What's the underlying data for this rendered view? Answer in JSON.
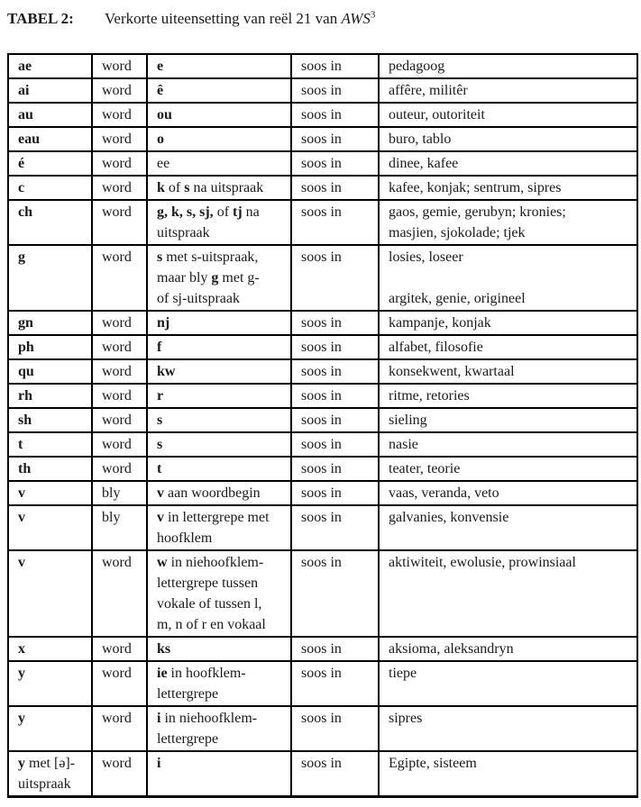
{
  "title": {
    "label": "TABEL 2:",
    "text": "Verkorte uiteensetting van reël 21 van ",
    "work": "AWS",
    "superscript": "3"
  },
  "colors": {
    "text": "#1a1a1a",
    "border": "#000000",
    "background": "#ffffff"
  },
  "table": {
    "rows": [
      {
        "grapheme": [
          {
            "b": "ae"
          }
        ],
        "status": "word",
        "replacement": [
          {
            "b": "e"
          }
        ],
        "soos_in": "soos in",
        "examples": [
          {
            "t": "pedagoog"
          }
        ]
      },
      {
        "grapheme": [
          {
            "b": "ai"
          }
        ],
        "status": "word",
        "replacement": [
          {
            "b": "ê"
          }
        ],
        "soos_in": "soos in",
        "examples": [
          {
            "t": "affêre, militêr"
          }
        ]
      },
      {
        "grapheme": [
          {
            "b": "au"
          }
        ],
        "status": "word",
        "replacement": [
          {
            "b": "ou"
          }
        ],
        "soos_in": "soos in",
        "examples": [
          {
            "t": "outeur, outoriteit"
          }
        ]
      },
      {
        "grapheme": [
          {
            "b": "eau"
          }
        ],
        "status": "word",
        "replacement": [
          {
            "b": "o"
          }
        ],
        "soos_in": "soos in",
        "examples": [
          {
            "t": "buro, tablo"
          }
        ]
      },
      {
        "grapheme": [
          {
            "b": "é"
          }
        ],
        "status": "word",
        "replacement": [
          {
            "t": "ee"
          }
        ],
        "soos_in": "soos in",
        "examples": [
          {
            "t": "dinee, kafee"
          }
        ]
      },
      {
        "grapheme": [
          {
            "b": "c"
          }
        ],
        "status": "word",
        "replacement": [
          {
            "b": "k"
          },
          {
            "t": " of "
          },
          {
            "b": "s"
          },
          {
            "t": " na uitspraak"
          }
        ],
        "soos_in": "soos in",
        "examples": [
          {
            "t": "kafee, konjak; sentrum, sipres"
          }
        ]
      },
      {
        "grapheme": [
          {
            "b": "ch"
          }
        ],
        "status": "word",
        "replacement": [
          {
            "b": "g, k, s, sj,"
          },
          {
            "t": " of "
          },
          {
            "b": "tj"
          },
          {
            "t": " na\nuitspraak"
          }
        ],
        "soos_in": "soos in",
        "examples": [
          {
            "t": "gaos, gemie, gerubyn; kronies;\nmasjien, sjokolade; tjek"
          }
        ]
      },
      {
        "grapheme": [
          {
            "b": "g"
          }
        ],
        "status": "word",
        "replacement": [
          {
            "b": "s"
          },
          {
            "t": " met s-uitspraak,\nmaar bly "
          },
          {
            "b": "g"
          },
          {
            "t": " met g-\nof sj-uitspraak"
          }
        ],
        "soos_in": "soos in",
        "examples": [
          {
            "t": "losies, loseer\n\nargitek, genie, origineel"
          }
        ]
      },
      {
        "grapheme": [
          {
            "b": "gn"
          }
        ],
        "status": "word",
        "replacement": [
          {
            "b": "nj"
          }
        ],
        "soos_in": "soos in",
        "examples": [
          {
            "t": "kampanje, konjak"
          }
        ]
      },
      {
        "grapheme": [
          {
            "b": "ph"
          }
        ],
        "status": "word",
        "replacement": [
          {
            "b": "f"
          }
        ],
        "soos_in": "soos in",
        "examples": [
          {
            "t": "alfabet, filosofie"
          }
        ]
      },
      {
        "grapheme": [
          {
            "b": "qu"
          }
        ],
        "status": "word",
        "replacement": [
          {
            "b": "kw"
          }
        ],
        "soos_in": "soos in",
        "examples": [
          {
            "t": "konsekwent, kwartaal"
          }
        ]
      },
      {
        "grapheme": [
          {
            "b": "rh"
          }
        ],
        "status": "word",
        "replacement": [
          {
            "b": "r"
          }
        ],
        "soos_in": "soos in",
        "examples": [
          {
            "t": "ritme, retories"
          }
        ]
      },
      {
        "grapheme": [
          {
            "b": "sh"
          }
        ],
        "status": "word",
        "replacement": [
          {
            "b": "s"
          }
        ],
        "soos_in": "soos in",
        "examples": [
          {
            "t": "sieling"
          }
        ]
      },
      {
        "grapheme": [
          {
            "b": "t"
          }
        ],
        "status": "word",
        "replacement": [
          {
            "b": "s"
          }
        ],
        "soos_in": "soos in",
        "examples": [
          {
            "t": "nasie"
          }
        ]
      },
      {
        "grapheme": [
          {
            "b": "th"
          }
        ],
        "status": "word",
        "replacement": [
          {
            "b": "t"
          }
        ],
        "soos_in": "soos in",
        "examples": [
          {
            "t": "teater, teorie"
          }
        ]
      },
      {
        "grapheme": [
          {
            "b": "v"
          }
        ],
        "status": "bly",
        "replacement": [
          {
            "b": "v"
          },
          {
            "t": " aan woordbegin"
          }
        ],
        "soos_in": "soos in",
        "examples": [
          {
            "t": "vaas, veranda, veto"
          }
        ]
      },
      {
        "grapheme": [
          {
            "b": "v"
          }
        ],
        "status": "bly",
        "replacement": [
          {
            "b": "v"
          },
          {
            "t": " in lettergrepe met\nhoofklem"
          }
        ],
        "soos_in": "soos in",
        "examples": [
          {
            "t": "galvanies, konvensie"
          }
        ]
      },
      {
        "grapheme": [
          {
            "b": "v"
          }
        ],
        "status": "word",
        "replacement": [
          {
            "b": "w"
          },
          {
            "t": " in niehoofklem-\nlettergrepe tussen\nvokale of tussen l,\nm, n of r en vokaal"
          }
        ],
        "soos_in": "soos in",
        "examples": [
          {
            "t": "aktiwiteit, ewolusie, prowinsiaal"
          }
        ]
      },
      {
        "grapheme": [
          {
            "b": "x"
          }
        ],
        "status": "word",
        "replacement": [
          {
            "b": "ks"
          }
        ],
        "soos_in": "soos in",
        "examples": [
          {
            "t": "aksioma, aleksandryn"
          }
        ]
      },
      {
        "grapheme": [
          {
            "b": "y"
          }
        ],
        "status": "word",
        "replacement": [
          {
            "b": "ie"
          },
          {
            "t": " in hoofklem-\nlettergrepe"
          }
        ],
        "soos_in": "soos in",
        "examples": [
          {
            "t": "tiepe"
          }
        ]
      },
      {
        "grapheme": [
          {
            "b": "y"
          }
        ],
        "status": "word",
        "replacement": [
          {
            "b": "i"
          },
          {
            "t": " in niehoofklem-\nlettergrepe"
          }
        ],
        "soos_in": "soos in",
        "examples": [
          {
            "t": "sipres"
          }
        ]
      },
      {
        "grapheme": [
          {
            "b": "y"
          },
          {
            "t": " met [ə]-\nuitspraak"
          }
        ],
        "status": "word",
        "replacement": [
          {
            "b": "i"
          }
        ],
        "soos_in": "soos in",
        "examples": [
          {
            "t": "Egipte, sisteem"
          }
        ]
      }
    ]
  }
}
